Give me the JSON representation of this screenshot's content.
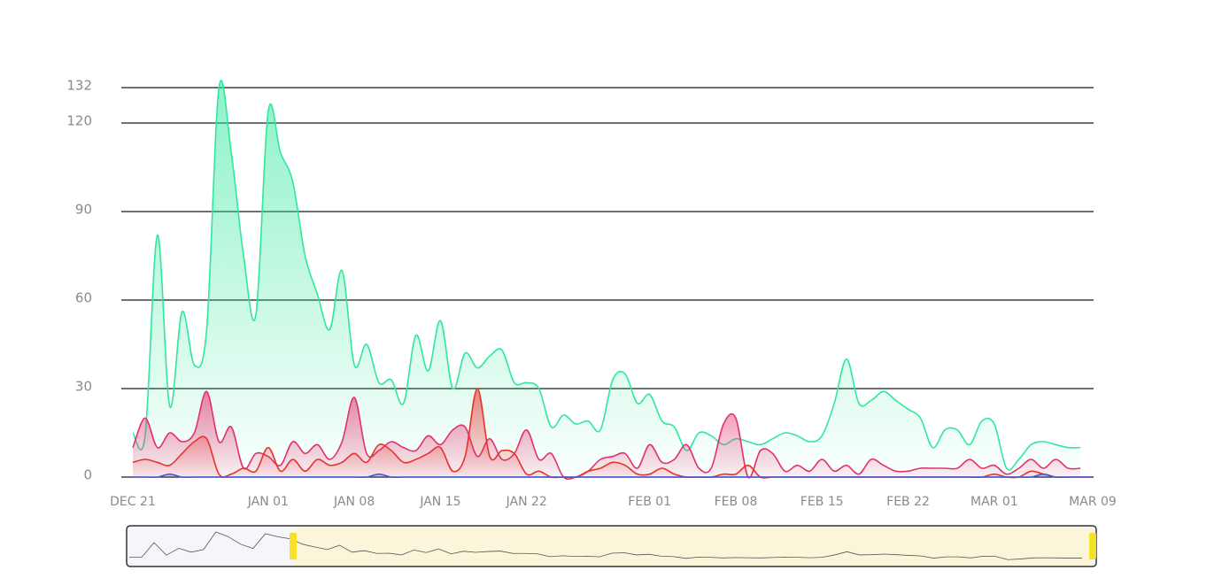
{
  "chart_data": {
    "type": "area",
    "categories": [
      "DEC 21",
      null,
      null,
      null,
      null,
      null,
      null,
      null,
      null,
      null,
      null,
      "JAN 01",
      null,
      null,
      null,
      null,
      null,
      null,
      "JAN 08",
      null,
      null,
      null,
      null,
      null,
      null,
      "JAN 15",
      null,
      null,
      null,
      null,
      null,
      null,
      "JAN 22",
      null,
      null,
      null,
      null,
      null,
      null,
      null,
      null,
      null,
      "FEB 01",
      null,
      null,
      null,
      null,
      null,
      null,
      "FEB 08",
      null,
      null,
      null,
      null,
      null,
      null,
      "FEB 15",
      null,
      null,
      null,
      null,
      null,
      null,
      "FEB 22",
      null,
      null,
      null,
      null,
      null,
      null,
      "MAR 01",
      null,
      null,
      null,
      null,
      null,
      null,
      null,
      "MAR 09"
    ],
    "series": [
      {
        "color": "#2fe89b",
        "values": [
          15,
          14,
          82,
          24,
          56,
          38,
          50,
          132,
          110,
          75,
          55,
          124,
          110,
          100,
          75,
          62,
          50,
          70,
          38,
          45,
          32,
          33,
          25,
          48,
          36,
          53,
          30,
          42,
          37,
          41,
          43,
          32,
          32,
          30,
          17,
          21,
          18,
          19,
          16,
          33,
          35,
          25,
          28,
          19,
          17,
          9,
          15,
          14,
          11,
          13,
          12,
          11,
          13,
          15,
          14,
          12,
          14,
          25,
          40,
          25,
          26,
          29,
          26,
          23,
          20,
          10,
          16,
          16,
          11,
          19,
          18,
          3,
          6,
          11,
          12,
          11,
          10,
          10,
          null
        ]
      },
      {
        "color": "#e3306e",
        "values": [
          10,
          20,
          10,
          15,
          12,
          15,
          29,
          12,
          17,
          3,
          8,
          7,
          4,
          12,
          8,
          11,
          6,
          12,
          27,
          8,
          9,
          12,
          10,
          9,
          14,
          11,
          16,
          17,
          7,
          13,
          6,
          8,
          16,
          6,
          8,
          0,
          0,
          2,
          6,
          7,
          8,
          3,
          11,
          5,
          6,
          11,
          3,
          3,
          18,
          20,
          0,
          9,
          8,
          2,
          4,
          2,
          6,
          2,
          4,
          1,
          6,
          4,
          2,
          2,
          3,
          3,
          3,
          3,
          6,
          3,
          4,
          1,
          3,
          6,
          3,
          6,
          3,
          3,
          null
        ]
      },
      {
        "color": "#e8312d",
        "values": [
          5,
          6,
          5,
          4,
          8,
          12,
          13,
          1,
          1,
          3,
          2,
          10,
          2,
          6,
          2,
          6,
          4,
          5,
          8,
          5,
          11,
          9,
          5,
          6,
          8,
          10,
          2,
          7,
          30,
          7,
          9,
          8,
          1,
          2,
          0,
          0,
          0,
          2,
          3,
          5,
          4,
          1,
          1,
          3,
          1,
          0,
          0,
          0,
          1,
          1,
          4,
          0,
          0,
          0,
          0,
          0,
          0,
          0,
          0,
          0,
          0,
          0,
          0,
          0,
          0,
          0,
          0,
          0,
          0,
          0,
          1,
          0,
          0,
          2,
          1,
          0,
          0,
          0,
          0
        ]
      },
      {
        "color": "#3b5bdb",
        "values": [
          0,
          0,
          0,
          1,
          0,
          0,
          0,
          0,
          0,
          0,
          0,
          0,
          0,
          0,
          0,
          0,
          0,
          0,
          0,
          0,
          1,
          0,
          0,
          0,
          0,
          0,
          0,
          0,
          0,
          0,
          0,
          0,
          0,
          0,
          0,
          0,
          0,
          0,
          0,
          0,
          0,
          0,
          0,
          0,
          0,
          0,
          0,
          0,
          0,
          0,
          0,
          0,
          0,
          0,
          0,
          0,
          0,
          0,
          0,
          0,
          0,
          0,
          0,
          0,
          0,
          0,
          0,
          0,
          0,
          0,
          0,
          0,
          0,
          0,
          1,
          0,
          0,
          0,
          0
        ]
      }
    ],
    "ylim": [
      0,
      132
    ],
    "yticks": [
      0,
      30,
      60,
      90,
      120,
      132
    ],
    "grid": true
  }
}
